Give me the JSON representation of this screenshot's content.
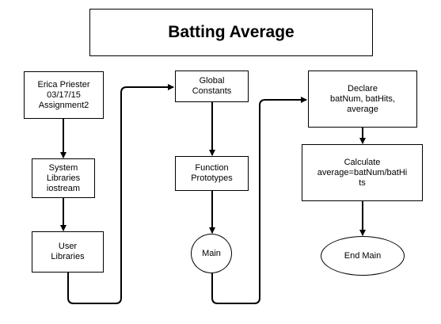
{
  "title": "Batting Average",
  "nodes": {
    "author": "Erica Priester\n03/17/15\nAssignment2",
    "system_libraries": "System\nLibraries\niostream",
    "user_libraries": "User\nLibraries",
    "global_constants": "Global\nConstants",
    "function_prototypes": "Function\nPrototypes",
    "main": "Main",
    "declare": "Declare\nbatNum, batHits,\naverage",
    "calculate": "Calculate\naverage=batNum/batHi\nts",
    "end_main": "End Main"
  }
}
